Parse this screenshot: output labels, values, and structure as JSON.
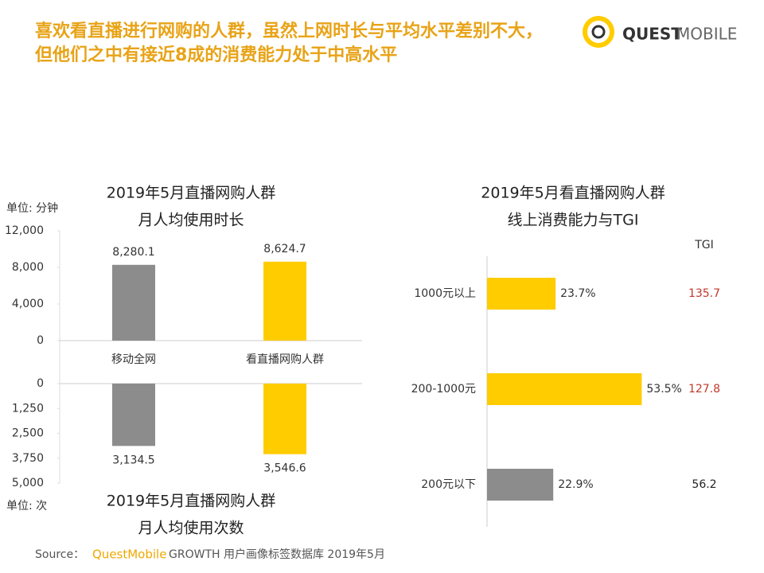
{
  "header": {
    "title": [
      "喜欢看直播进行网购的人群，虽然上网时长与平均水平差别不大，",
      "但他们之中有接近8成的消费能力处于中高水平"
    ],
    "logo": [
      "QUEST",
      "MOBILE"
    ]
  },
  "chart_data": [
    {
      "type": "bar",
      "title": [
        "2019年5月直播网购人群",
        "月人均使用时长"
      ],
      "unit": "单位: 分钟",
      "categories": [
        "移动全网",
        "看直播网购人群"
      ],
      "values": [
        8280.1,
        8624.7
      ],
      "value_labels": [
        "8,280.1",
        "8,624.7"
      ],
      "colors": [
        "#8c8c8c",
        "#ffcc00"
      ],
      "ylim": [
        0,
        12000
      ],
      "yticks": [
        0,
        {
          "value": 4000,
          "label": "4,000"
        },
        {
          "value": 8000,
          "label": "8,000"
        },
        {
          "value": 12000,
          "label": "12,000"
        }
      ]
    },
    {
      "type": "bar",
      "title": [
        "2019年5月直播网购人群",
        "月人均使用次数"
      ],
      "unit": "单位: 次",
      "categories": [
        null,
        null
      ],
      "values": [
        3134.5,
        3546.6
      ],
      "value_labels": [
        "3,134.5",
        "3,546.6"
      ],
      "colors": [
        "#8c8c8c",
        "#ffcc00"
      ],
      "ylim": [
        0,
        5000
      ],
      "y_inverted": true,
      "yticks": [
        0,
        {
          "value": 1250,
          "label": "1,250"
        },
        {
          "value": 2500,
          "label": "2,500"
        },
        {
          "value": 3750,
          "label": "3,750"
        },
        {
          "value": 5000,
          "label": "5,000"
        }
      ]
    },
    {
      "type": "barh",
      "title": [
        "2019年5月看直播网购人群",
        "线上消费能力与TGI"
      ],
      "categories": [
        "1000元以上",
        "200-1000元",
        "200元以下"
      ],
      "values": [
        23.7,
        53.5,
        22.9
      ],
      "value_labels": [
        "23.7%",
        "53.5%",
        "22.9%"
      ],
      "colors": [
        "#ffcc00",
        "#ffcc00",
        "#8c8c8c"
      ],
      "xlim": [
        0,
        60
      ],
      "tgi": {
        "label": "TGI",
        "values": [
          135.7,
          127.8,
          56.2
        ],
        "colors": [
          "#c0392b",
          "#c0392b",
          "#222222"
        ]
      }
    }
  ],
  "footer": {
    "source": "Source：",
    "brand": "QuestMobile",
    "text": "GROWTH 用户画像标签数据库 2019年5月"
  }
}
